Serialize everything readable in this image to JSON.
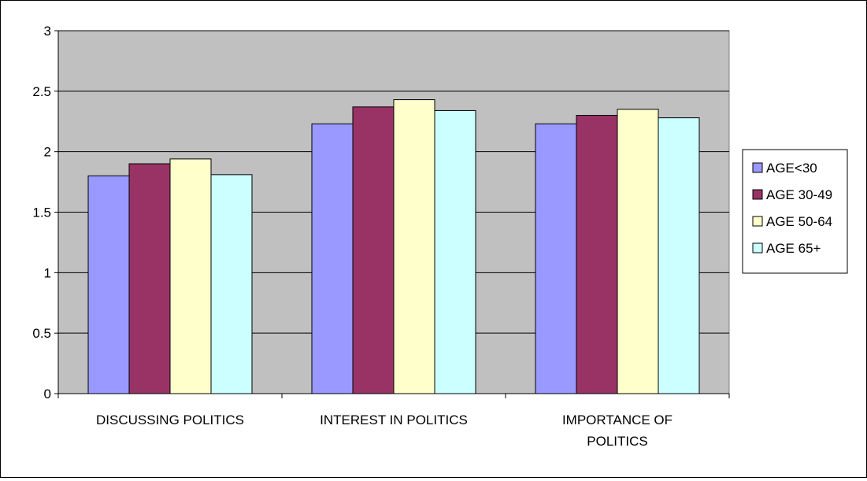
{
  "chart_data": {
    "type": "bar",
    "title": "",
    "xlabel": "",
    "ylabel": "",
    "categories": [
      [
        "DISCUSSING POLITICS"
      ],
      [
        "INTEREST IN POLITICS"
      ],
      [
        "IMPORTANCE OF",
        "POLITICS"
      ]
    ],
    "series": [
      {
        "name": "AGE<30",
        "color": "#9999ff",
        "values": [
          1.8,
          2.23,
          2.23
        ]
      },
      {
        "name": "AGE 30-49",
        "color": "#993366",
        "values": [
          1.9,
          2.37,
          2.3
        ]
      },
      {
        "name": "AGE 50-64",
        "color": "#ffffcc",
        "values": [
          1.94,
          2.43,
          2.35
        ]
      },
      {
        "name": "AGE 65+",
        "color": "#ccffff",
        "values": [
          1.81,
          2.34,
          2.28
        ]
      }
    ],
    "ylim": [
      0,
      3
    ],
    "yticks": [
      "0",
      "0.5",
      "1",
      "1.5",
      "2",
      "2.5",
      "3"
    ],
    "grid": true,
    "plot_background": "#c0c0c0",
    "legend_position": "right"
  }
}
